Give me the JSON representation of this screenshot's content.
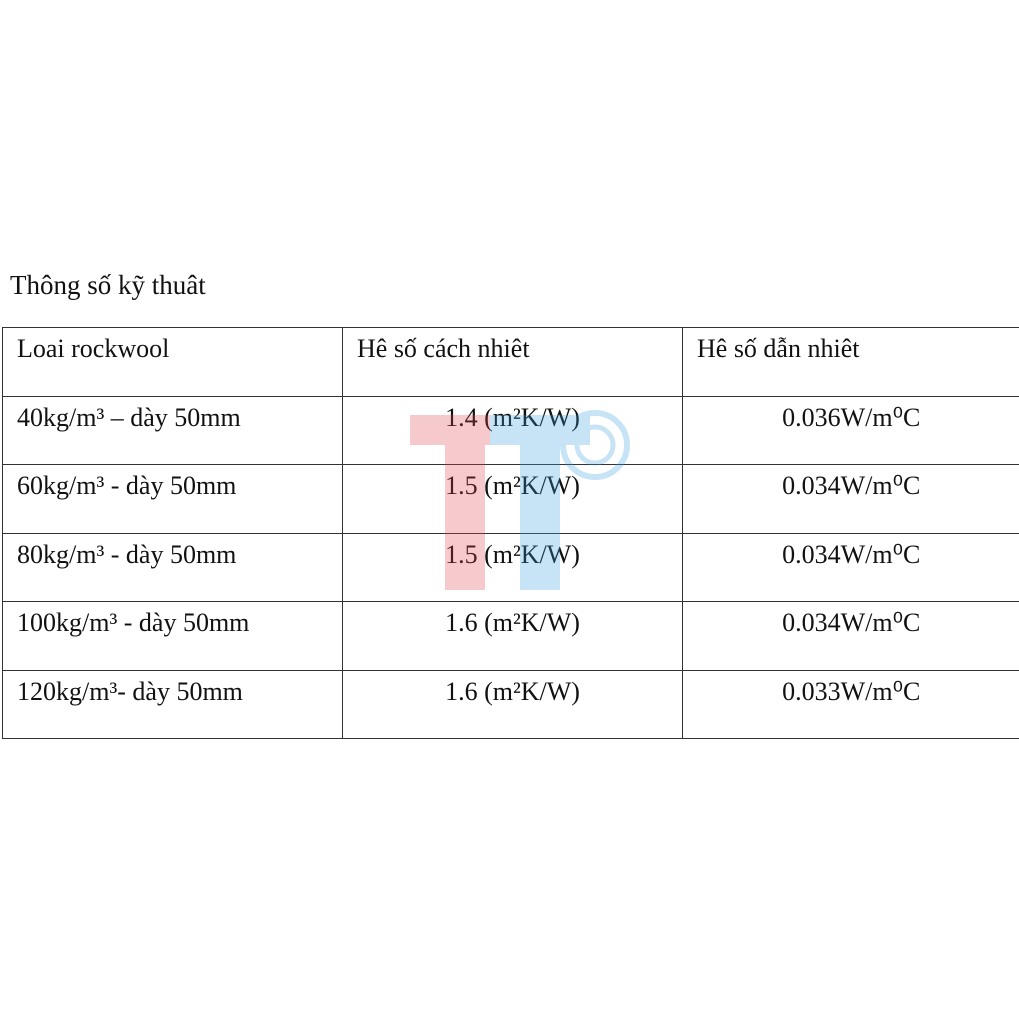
{
  "document": {
    "title": "Thông số kỹ thuât",
    "table": {
      "header": [
        "Loai rockwool",
        "Hê số cách nhiêt",
        "Hê số dẫn nhiêt"
      ],
      "rows": [
        [
          "40kg/m³ – dày 50mm",
          "1.4 (m²K/W)",
          "0.036W/m⁰C"
        ],
        [
          "60kg/m³ - dày 50mm",
          "1.5 (m²K/W)",
          "0.034W/m⁰C"
        ],
        [
          "80kg/m³ - dày 50mm",
          "1.5 (m²K/W)",
          "0.034W/m⁰C"
        ],
        [
          "100kg/m³ - dày 50mm",
          "1.6 (m²K/W)",
          "0.034W/m⁰C"
        ],
        [
          "120kg/m³- dày 50mm",
          "1.6 (m²K/W)",
          "0.033W/m⁰C"
        ]
      ]
    }
  }
}
